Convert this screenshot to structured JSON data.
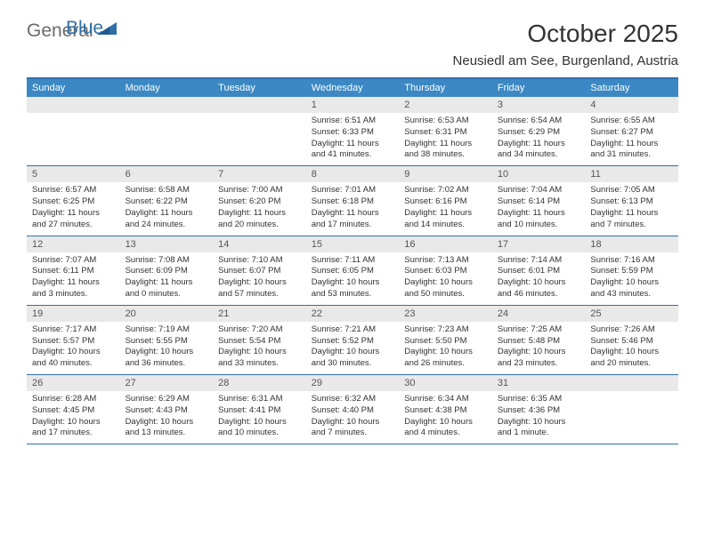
{
  "logo": {
    "text1": "General",
    "text2": "Blue"
  },
  "title": "October 2025",
  "location": "Neusiedl am See, Burgenland, Austria",
  "colors": {
    "header_bg": "#3b88c4",
    "border": "#2f6fa8",
    "daynum_bg": "#e9e9e9",
    "text": "#333333",
    "logo_gray": "#6b6b6b",
    "logo_blue": "#2f6fa8"
  },
  "fonts": {
    "title_size": 28,
    "location_size": 15,
    "head_size": 11,
    "body_size": 9.5
  },
  "dayNames": [
    "Sunday",
    "Monday",
    "Tuesday",
    "Wednesday",
    "Thursday",
    "Friday",
    "Saturday"
  ],
  "weeks": [
    [
      null,
      null,
      null,
      {
        "n": "1",
        "lines": [
          "Sunrise: 6:51 AM",
          "Sunset: 6:33 PM",
          "Daylight: 11 hours",
          "and 41 minutes."
        ]
      },
      {
        "n": "2",
        "lines": [
          "Sunrise: 6:53 AM",
          "Sunset: 6:31 PM",
          "Daylight: 11 hours",
          "and 38 minutes."
        ]
      },
      {
        "n": "3",
        "lines": [
          "Sunrise: 6:54 AM",
          "Sunset: 6:29 PM",
          "Daylight: 11 hours",
          "and 34 minutes."
        ]
      },
      {
        "n": "4",
        "lines": [
          "Sunrise: 6:55 AM",
          "Sunset: 6:27 PM",
          "Daylight: 11 hours",
          "and 31 minutes."
        ]
      }
    ],
    [
      {
        "n": "5",
        "lines": [
          "Sunrise: 6:57 AM",
          "Sunset: 6:25 PM",
          "Daylight: 11 hours",
          "and 27 minutes."
        ]
      },
      {
        "n": "6",
        "lines": [
          "Sunrise: 6:58 AM",
          "Sunset: 6:22 PM",
          "Daylight: 11 hours",
          "and 24 minutes."
        ]
      },
      {
        "n": "7",
        "lines": [
          "Sunrise: 7:00 AM",
          "Sunset: 6:20 PM",
          "Daylight: 11 hours",
          "and 20 minutes."
        ]
      },
      {
        "n": "8",
        "lines": [
          "Sunrise: 7:01 AM",
          "Sunset: 6:18 PM",
          "Daylight: 11 hours",
          "and 17 minutes."
        ]
      },
      {
        "n": "9",
        "lines": [
          "Sunrise: 7:02 AM",
          "Sunset: 6:16 PM",
          "Daylight: 11 hours",
          "and 14 minutes."
        ]
      },
      {
        "n": "10",
        "lines": [
          "Sunrise: 7:04 AM",
          "Sunset: 6:14 PM",
          "Daylight: 11 hours",
          "and 10 minutes."
        ]
      },
      {
        "n": "11",
        "lines": [
          "Sunrise: 7:05 AM",
          "Sunset: 6:13 PM",
          "Daylight: 11 hours",
          "and 7 minutes."
        ]
      }
    ],
    [
      {
        "n": "12",
        "lines": [
          "Sunrise: 7:07 AM",
          "Sunset: 6:11 PM",
          "Daylight: 11 hours",
          "and 3 minutes."
        ]
      },
      {
        "n": "13",
        "lines": [
          "Sunrise: 7:08 AM",
          "Sunset: 6:09 PM",
          "Daylight: 11 hours",
          "and 0 minutes."
        ]
      },
      {
        "n": "14",
        "lines": [
          "Sunrise: 7:10 AM",
          "Sunset: 6:07 PM",
          "Daylight: 10 hours",
          "and 57 minutes."
        ]
      },
      {
        "n": "15",
        "lines": [
          "Sunrise: 7:11 AM",
          "Sunset: 6:05 PM",
          "Daylight: 10 hours",
          "and 53 minutes."
        ]
      },
      {
        "n": "16",
        "lines": [
          "Sunrise: 7:13 AM",
          "Sunset: 6:03 PM",
          "Daylight: 10 hours",
          "and 50 minutes."
        ]
      },
      {
        "n": "17",
        "lines": [
          "Sunrise: 7:14 AM",
          "Sunset: 6:01 PM",
          "Daylight: 10 hours",
          "and 46 minutes."
        ]
      },
      {
        "n": "18",
        "lines": [
          "Sunrise: 7:16 AM",
          "Sunset: 5:59 PM",
          "Daylight: 10 hours",
          "and 43 minutes."
        ]
      }
    ],
    [
      {
        "n": "19",
        "lines": [
          "Sunrise: 7:17 AM",
          "Sunset: 5:57 PM",
          "Daylight: 10 hours",
          "and 40 minutes."
        ]
      },
      {
        "n": "20",
        "lines": [
          "Sunrise: 7:19 AM",
          "Sunset: 5:55 PM",
          "Daylight: 10 hours",
          "and 36 minutes."
        ]
      },
      {
        "n": "21",
        "lines": [
          "Sunrise: 7:20 AM",
          "Sunset: 5:54 PM",
          "Daylight: 10 hours",
          "and 33 minutes."
        ]
      },
      {
        "n": "22",
        "lines": [
          "Sunrise: 7:21 AM",
          "Sunset: 5:52 PM",
          "Daylight: 10 hours",
          "and 30 minutes."
        ]
      },
      {
        "n": "23",
        "lines": [
          "Sunrise: 7:23 AM",
          "Sunset: 5:50 PM",
          "Daylight: 10 hours",
          "and 26 minutes."
        ]
      },
      {
        "n": "24",
        "lines": [
          "Sunrise: 7:25 AM",
          "Sunset: 5:48 PM",
          "Daylight: 10 hours",
          "and 23 minutes."
        ]
      },
      {
        "n": "25",
        "lines": [
          "Sunrise: 7:26 AM",
          "Sunset: 5:46 PM",
          "Daylight: 10 hours",
          "and 20 minutes."
        ]
      }
    ],
    [
      {
        "n": "26",
        "lines": [
          "Sunrise: 6:28 AM",
          "Sunset: 4:45 PM",
          "Daylight: 10 hours",
          "and 17 minutes."
        ]
      },
      {
        "n": "27",
        "lines": [
          "Sunrise: 6:29 AM",
          "Sunset: 4:43 PM",
          "Daylight: 10 hours",
          "and 13 minutes."
        ]
      },
      {
        "n": "28",
        "lines": [
          "Sunrise: 6:31 AM",
          "Sunset: 4:41 PM",
          "Daylight: 10 hours",
          "and 10 minutes."
        ]
      },
      {
        "n": "29",
        "lines": [
          "Sunrise: 6:32 AM",
          "Sunset: 4:40 PM",
          "Daylight: 10 hours",
          "and 7 minutes."
        ]
      },
      {
        "n": "30",
        "lines": [
          "Sunrise: 6:34 AM",
          "Sunset: 4:38 PM",
          "Daylight: 10 hours",
          "and 4 minutes."
        ]
      },
      {
        "n": "31",
        "lines": [
          "Sunrise: 6:35 AM",
          "Sunset: 4:36 PM",
          "Daylight: 10 hours",
          "and 1 minute."
        ]
      },
      null
    ]
  ]
}
